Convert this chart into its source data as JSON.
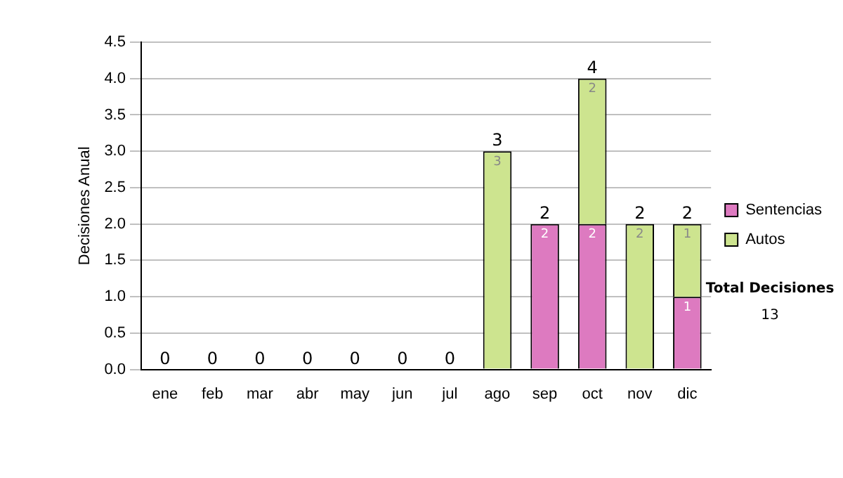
{
  "chart_data": {
    "type": "bar",
    "stacked": true,
    "ylabel": "Decisiones Anual",
    "categories": [
      "ene",
      "feb",
      "mar",
      "abr",
      "may",
      "jun",
      "jul",
      "ago",
      "sep",
      "oct",
      "nov",
      "dic"
    ],
    "series": [
      {
        "name": "Sentencias",
        "color": "#dd7ac0",
        "values": [
          0,
          0,
          0,
          0,
          0,
          0,
          0,
          0,
          2,
          2,
          0,
          1
        ],
        "value_labels": [
          null,
          null,
          null,
          null,
          null,
          null,
          null,
          null,
          "2",
          "2",
          null,
          "1"
        ]
      },
      {
        "name": "Autos",
        "color": "#cde48f",
        "values": [
          0,
          0,
          0,
          0,
          0,
          0,
          0,
          3,
          0,
          2,
          2,
          1
        ],
        "value_labels": [
          null,
          null,
          null,
          null,
          null,
          null,
          null,
          "3",
          null,
          "2",
          "2",
          "1"
        ]
      }
    ],
    "totals": [
      "0",
      "0",
      "0",
      "0",
      "0",
      "0",
      "0",
      "3",
      "2",
      "4",
      "2",
      "2"
    ],
    "ylim": [
      0,
      4.5
    ],
    "yticks": [
      {
        "value": 0,
        "label": "0.0"
      },
      {
        "value": 0.5,
        "label": "0.5"
      },
      {
        "value": 1,
        "label": "1.0"
      },
      {
        "value": 1.5,
        "label": "1.5"
      },
      {
        "value": 2,
        "label": "2.0"
      },
      {
        "value": 2.5,
        "label": "2.5"
      },
      {
        "value": 3,
        "label": "3.0"
      },
      {
        "value": 3.5,
        "label": "3.5"
      },
      {
        "value": 4,
        "label": "4.0"
      },
      {
        "value": 4.5,
        "label": "4.5"
      }
    ],
    "grid": "y",
    "legend": "right",
    "annotations": [
      "Total Decisiones",
      "13"
    ]
  }
}
